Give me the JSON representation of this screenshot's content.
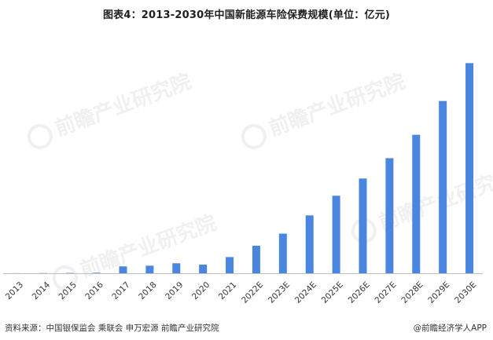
{
  "chart_data": {
    "type": "bar",
    "title": "图表4：2013-2030年中国新能源车险保费规模(单位：亿元)",
    "categories": [
      "2013",
      "2014",
      "2015",
      "2016",
      "2017",
      "2018",
      "2019",
      "2020",
      "2021",
      "2022E",
      "2023E",
      "2024E",
      "2025E",
      "2026E",
      "2027E",
      "2028E",
      "2029E",
      "2030E"
    ],
    "values": [
      0.3,
      0.6,
      1.0,
      1.5,
      20,
      22,
      29,
      25,
      47,
      80,
      115,
      168,
      225,
      275,
      334,
      402,
      500,
      610
    ],
    "ylim": [
      0,
      620
    ],
    "grid": false,
    "legend": "none",
    "bar_color": "#4a86e0",
    "axis_color": "#bfbfbf"
  },
  "footer": {
    "source": "资料来源：中国银保监会 乘联会 申万宏源 前瞻产业研究院",
    "brand": "@前瞻经济学人APP"
  },
  "watermark": {
    "text": "前瞻产业研究院"
  }
}
